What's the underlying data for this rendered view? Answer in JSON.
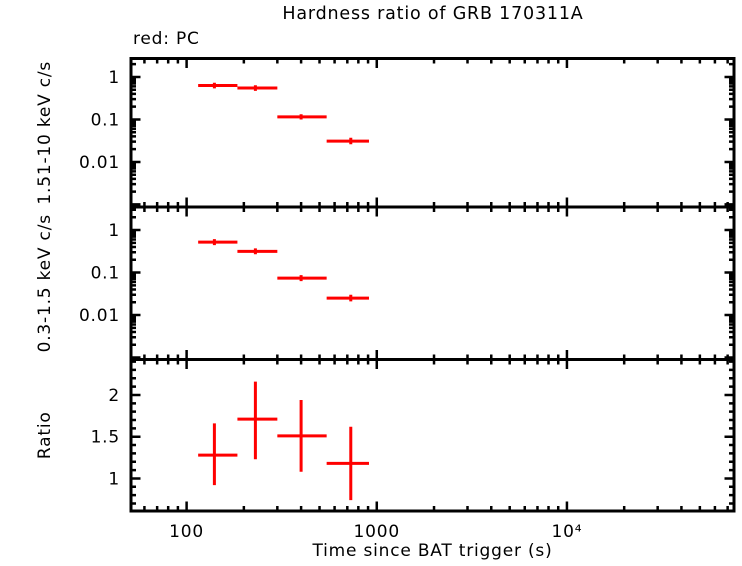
{
  "title": "Hardness ratio of GRB 170311A",
  "annotation": "red: PC",
  "colors": {
    "series": "#ff0000",
    "frame": "#000000",
    "background": "#ffffff"
  },
  "chart_data": {
    "type": "scatter",
    "title": "Hardness ratio of GRB 170311A",
    "annotation": "red: PC",
    "series_name": "PC",
    "grid": false,
    "xlabel": "Time since BAT trigger (s)",
    "x_scale": "log",
    "xlim": [
      51,
      75600
    ],
    "x_ticks": [
      {
        "value": 100,
        "label": "100"
      },
      {
        "value": 1000,
        "label": "1000"
      },
      {
        "value": 10000,
        "label": "10⁴"
      }
    ],
    "panels": [
      {
        "name": "hard-band",
        "ylabel": "1.51-10 keV c/s",
        "y_scale": "log",
        "ylim": [
          0.00087,
          2.72
        ],
        "y_ticks": [
          {
            "value": 1,
            "label": "1"
          },
          {
            "value": 0.1,
            "label": "0.1"
          },
          {
            "value": 0.01,
            "label": "0.01"
          }
        ],
        "points": [
          {
            "t": 140,
            "t_lo": 115,
            "t_hi": 185,
            "v": 0.63,
            "v_lo": 0.54,
            "v_hi": 0.73
          },
          {
            "t": 230,
            "t_lo": 185,
            "t_hi": 300,
            "v": 0.55,
            "v_lo": 0.47,
            "v_hi": 0.64
          },
          {
            "t": 400,
            "t_lo": 300,
            "t_hi": 545,
            "v": 0.115,
            "v_lo": 0.1,
            "v_hi": 0.133
          },
          {
            "t": 730,
            "t_lo": 545,
            "t_hi": 910,
            "v": 0.031,
            "v_lo": 0.026,
            "v_hi": 0.037
          }
        ]
      },
      {
        "name": "soft-band",
        "ylabel": "0.3-1.5 keV c/s",
        "y_scale": "log",
        "ylim": [
          0.0009,
          3.48
        ],
        "y_ticks": [
          {
            "value": 1,
            "label": "1"
          },
          {
            "value": 0.1,
            "label": "0.1"
          },
          {
            "value": 0.01,
            "label": "0.01"
          }
        ],
        "points": [
          {
            "t": 140,
            "t_lo": 115,
            "t_hi": 185,
            "v": 0.52,
            "v_lo": 0.44,
            "v_hi": 0.61
          },
          {
            "t": 230,
            "t_lo": 185,
            "t_hi": 300,
            "v": 0.315,
            "v_lo": 0.27,
            "v_hi": 0.37
          },
          {
            "t": 400,
            "t_lo": 300,
            "t_hi": 545,
            "v": 0.074,
            "v_lo": 0.063,
            "v_hi": 0.087
          },
          {
            "t": 730,
            "t_lo": 545,
            "t_hi": 910,
            "v": 0.025,
            "v_lo": 0.021,
            "v_hi": 0.03
          }
        ]
      },
      {
        "name": "ratio",
        "ylabel": "Ratio",
        "y_scale": "linear",
        "ylim": [
          0.61,
          2.425
        ],
        "y_minor_step": 0.1,
        "y_major_step": 0.5,
        "y_ticks": [
          {
            "value": 1,
            "label": "1"
          },
          {
            "value": 1.5,
            "label": "1.5"
          },
          {
            "value": 2,
            "label": "2"
          }
        ],
        "points": [
          {
            "t": 140,
            "t_lo": 115,
            "t_hi": 185,
            "v": 1.28,
            "v_lo": 0.92,
            "v_hi": 1.66
          },
          {
            "t": 230,
            "t_lo": 185,
            "t_hi": 300,
            "v": 1.71,
            "v_lo": 1.23,
            "v_hi": 2.16
          },
          {
            "t": 400,
            "t_lo": 300,
            "t_hi": 545,
            "v": 1.51,
            "v_lo": 1.08,
            "v_hi": 1.94
          },
          {
            "t": 730,
            "t_lo": 545,
            "t_hi": 910,
            "v": 1.18,
            "v_lo": 0.74,
            "v_hi": 1.62
          }
        ]
      }
    ]
  }
}
